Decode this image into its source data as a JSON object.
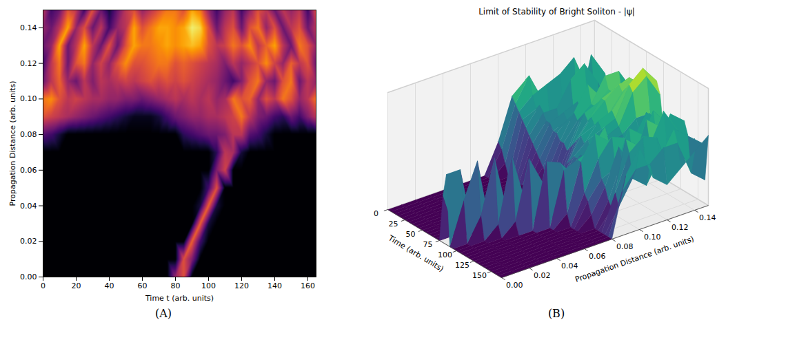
{
  "chart_data": [
    {
      "type": "heatmap",
      "caption": "(A)",
      "x_label": "Time t (arb. units)",
      "y_label": "Propagation Distance (arb. units)",
      "color": "inferno",
      "color_range": [
        0,
        1
      ],
      "xlim": [
        0,
        165
      ],
      "ylim": [
        0,
        0.15
      ],
      "xticks": [
        0,
        20,
        40,
        60,
        80,
        100,
        120,
        140,
        160
      ],
      "yticks": [
        {
          "value": 0,
          "label": "0.00"
        },
        {
          "value": 0.02,
          "label": "0.02"
        },
        {
          "value": 0.04,
          "label": "0.04"
        },
        {
          "value": 0.06,
          "label": "0.06"
        },
        {
          "value": 0.08,
          "label": "0.08"
        },
        {
          "value": 0.1,
          "label": "0.10"
        },
        {
          "value": 0.12,
          "label": "0.12"
        },
        {
          "value": 0.14,
          "label": "0.14"
        }
      ],
      "t": [
        0,
        5,
        10,
        15,
        20,
        25,
        30,
        35,
        40,
        45,
        50,
        55,
        60,
        65,
        70,
        75,
        80,
        85,
        90,
        95,
        100,
        105,
        110,
        115,
        120,
        125,
        130,
        135,
        140,
        145,
        150,
        155,
        160,
        165
      ],
      "z": [
        0,
        0.01,
        0.02,
        0.03,
        0.04,
        0.05,
        0.06,
        0.07,
        0.08,
        0.09,
        0.1,
        0.11,
        0.12,
        0.13,
        0.14,
        0.15
      ],
      "values": [
        [
          0,
          0,
          0,
          0,
          0,
          0,
          0,
          0,
          0,
          0,
          0,
          0,
          0,
          0,
          0,
          0,
          0.4,
          0.6,
          0,
          0,
          0,
          0,
          0,
          0,
          0,
          0,
          0,
          0,
          0,
          0,
          0,
          0,
          0,
          0
        ],
        [
          0,
          0,
          0,
          0,
          0,
          0,
          0,
          0,
          0,
          0,
          0,
          0,
          0,
          0,
          0,
          0,
          0,
          0.6,
          0.35,
          0,
          0,
          0,
          0,
          0,
          0,
          0,
          0,
          0,
          0,
          0,
          0,
          0,
          0,
          0
        ],
        [
          0,
          0,
          0,
          0,
          0,
          0,
          0,
          0,
          0,
          0,
          0,
          0,
          0,
          0,
          0,
          0,
          0,
          0,
          0.65,
          0.2,
          0,
          0,
          0,
          0,
          0,
          0,
          0,
          0,
          0,
          0,
          0,
          0,
          0,
          0
        ],
        [
          0,
          0,
          0,
          0,
          0,
          0,
          0,
          0,
          0,
          0,
          0,
          0,
          0,
          0,
          0,
          0,
          0,
          0,
          0,
          0.65,
          0.1,
          0,
          0,
          0,
          0,
          0,
          0,
          0,
          0,
          0,
          0,
          0,
          0,
          0
        ],
        [
          0,
          0,
          0,
          0,
          0,
          0,
          0,
          0,
          0,
          0,
          0,
          0,
          0,
          0,
          0,
          0,
          0,
          0,
          0,
          0.1,
          0.65,
          0.1,
          0,
          0,
          0,
          0,
          0,
          0,
          0,
          0,
          0,
          0,
          0,
          0
        ],
        [
          0,
          0,
          0,
          0,
          0,
          0,
          0,
          0,
          0,
          0,
          0,
          0,
          0,
          0,
          0,
          0,
          0,
          0,
          0,
          0,
          0.2,
          0.6,
          0,
          0,
          0,
          0,
          0,
          0,
          0,
          0,
          0,
          0,
          0,
          0
        ],
        [
          0,
          0,
          0,
          0,
          0,
          0,
          0,
          0,
          0,
          0,
          0,
          0,
          0,
          0,
          0,
          0,
          0,
          0,
          0,
          0,
          0,
          0.35,
          0.55,
          0,
          0,
          0,
          0,
          0,
          0,
          0,
          0,
          0,
          0,
          0
        ],
        [
          0,
          0,
          0,
          0,
          0,
          0,
          0,
          0,
          0,
          0,
          0,
          0,
          0,
          0,
          0,
          0,
          0,
          0,
          0,
          0,
          0,
          0.15,
          0.5,
          0.45,
          0.1,
          0,
          0,
          0,
          0,
          0,
          0,
          0,
          0,
          0
        ],
        [
          0.25,
          0.2,
          0.1,
          0,
          0,
          0,
          0,
          0,
          0,
          0,
          0,
          0,
          0,
          0,
          0,
          0,
          0,
          0.15,
          0.2,
          0.25,
          0.3,
          0.3,
          0.35,
          0.5,
          0.5,
          0.25,
          0.2,
          0.1,
          0,
          0,
          0,
          0,
          0,
          0
        ],
        [
          0.6,
          0.55,
          0.5,
          0.45,
          0.4,
          0.35,
          0.3,
          0.25,
          0.2,
          0.15,
          0.1,
          0.05,
          0.05,
          0.05,
          0.1,
          0.2,
          0.3,
          0.35,
          0.4,
          0.4,
          0.45,
          0.45,
          0.5,
          0.55,
          0.7,
          0.5,
          0.35,
          0.3,
          0.2,
          0.15,
          0.3,
          0.2,
          0.35,
          0.5
        ],
        [
          0.7,
          0.75,
          0.6,
          0.5,
          0.55,
          0.5,
          0.45,
          0.45,
          0.4,
          0.4,
          0.35,
          0.35,
          0.3,
          0.35,
          0.4,
          0.45,
          0.5,
          0.45,
          0.5,
          0.45,
          0.5,
          0.4,
          0.45,
          0.7,
          0.6,
          0.65,
          0.4,
          0.6,
          0.5,
          0.7,
          0.6,
          0.4,
          0.5,
          0.7
        ],
        [
          0.3,
          0.5,
          0.65,
          0.4,
          0.3,
          0.5,
          0.35,
          0.5,
          0.45,
          0.5,
          0.55,
          0.5,
          0.55,
          0.6,
          0.55,
          0.6,
          0.55,
          0.6,
          0.55,
          0.5,
          0.45,
          0.4,
          0.3,
          0.2,
          0.35,
          0.6,
          0.7,
          0.4,
          0.3,
          0.6,
          0.7,
          0.3,
          0.5,
          0.4
        ],
        [
          0.2,
          0.5,
          0.7,
          0.3,
          0.6,
          0.7,
          0.4,
          0.55,
          0.4,
          0.6,
          0.75,
          0.6,
          0.6,
          0.65,
          0.7,
          0.7,
          0.6,
          0.65,
          0.6,
          0.55,
          0.5,
          0.45,
          0.35,
          0.5,
          0.4,
          0.5,
          0.6,
          0.75,
          0.55,
          0.4,
          0.65,
          0.5,
          0.6,
          0.3
        ],
        [
          0.3,
          0.4,
          0.8,
          0.3,
          0.5,
          0.8,
          0.5,
          0.3,
          0.6,
          0.3,
          0.6,
          0.8,
          0.7,
          0.7,
          0.75,
          0.8,
          0.75,
          0.8,
          0.85,
          0.8,
          0.6,
          0.5,
          0.55,
          0.7,
          0.6,
          0.75,
          0.5,
          0.65,
          0.8,
          0.5,
          0.3,
          0.7,
          0.6,
          0.4
        ],
        [
          0.4,
          0.3,
          0.5,
          0.8,
          0.4,
          0.6,
          0.3,
          0.5,
          0.2,
          0.4,
          0.5,
          0.8,
          0.6,
          0.7,
          0.8,
          0.8,
          0.75,
          0.8,
          0.95,
          0.9,
          0.6,
          0.3,
          0.5,
          0.6,
          0.3,
          0.6,
          0.7,
          0.4,
          0.6,
          0.3,
          0.5,
          0.6,
          0.3,
          0.5
        ],
        [
          0.5,
          0.2,
          0.3,
          0.6,
          0.5,
          0.2,
          0.6,
          0.3,
          0.1,
          0.3,
          0.5,
          0.6,
          0.4,
          0.5,
          0.6,
          0.7,
          0.7,
          0.6,
          0.8,
          0.7,
          0.4,
          0.2,
          0.4,
          0.5,
          0.2,
          0.4,
          0.6,
          0.5,
          0.3,
          0.5,
          0.4,
          0.5,
          0.2,
          0.6
        ]
      ]
    },
    {
      "type": "surface",
      "caption": "(B)",
      "title": "Limit of Stability of Bright Soliton - |ψ|",
      "x_label": "Time (arb. units)",
      "y_label": "Propagation Distance (arb. units)",
      "color": "viridis",
      "tick_labels": "x",
      "xlim": [
        0,
        165
      ],
      "ylim": [
        0,
        0.15
      ],
      "zlim": [
        0,
        1
      ],
      "xticks": [
        0,
        25,
        50,
        75,
        100,
        125,
        150
      ],
      "yticks": [
        {
          "value": 0,
          "label": "0.00"
        },
        {
          "value": 0.02,
          "label": "0.02"
        },
        {
          "value": 0.04,
          "label": "0.04"
        },
        {
          "value": 0.06,
          "label": "0.06"
        },
        {
          "value": 0.08,
          "label": "0.08"
        },
        {
          "value": 0.1,
          "label": "0.10"
        },
        {
          "value": 0.12,
          "label": "0.12"
        },
        {
          "value": 0.14,
          "label": "0.14"
        }
      ],
      "t": [
        0,
        5,
        10,
        15,
        20,
        25,
        30,
        35,
        40,
        45,
        50,
        55,
        60,
        65,
        70,
        75,
        80,
        85,
        90,
        95,
        100,
        105,
        110,
        115,
        120,
        125,
        130,
        135,
        140,
        145,
        150,
        155,
        160,
        165
      ],
      "z": [
        0,
        0.01,
        0.02,
        0.03,
        0.04,
        0.05,
        0.06,
        0.07,
        0.08,
        0.09,
        0.1,
        0.11,
        0.12,
        0.13,
        0.14,
        0.15
      ],
      "values": [
        [
          0,
          0,
          0,
          0,
          0,
          0,
          0,
          0,
          0,
          0,
          0,
          0,
          0,
          0,
          0,
          0,
          0.4,
          0.6,
          0,
          0,
          0,
          0,
          0,
          0,
          0,
          0,
          0,
          0,
          0,
          0,
          0,
          0,
          0,
          0
        ],
        [
          0,
          0,
          0,
          0,
          0,
          0,
          0,
          0,
          0,
          0,
          0,
          0,
          0,
          0,
          0,
          0,
          0,
          0.6,
          0.35,
          0,
          0,
          0,
          0,
          0,
          0,
          0,
          0,
          0,
          0,
          0,
          0,
          0,
          0,
          0
        ],
        [
          0,
          0,
          0,
          0,
          0,
          0,
          0,
          0,
          0,
          0,
          0,
          0,
          0,
          0,
          0,
          0,
          0,
          0,
          0.65,
          0.2,
          0,
          0,
          0,
          0,
          0,
          0,
          0,
          0,
          0,
          0,
          0,
          0,
          0,
          0
        ],
        [
          0,
          0,
          0,
          0,
          0,
          0,
          0,
          0,
          0,
          0,
          0,
          0,
          0,
          0,
          0,
          0,
          0,
          0,
          0,
          0.65,
          0.1,
          0,
          0,
          0,
          0,
          0,
          0,
          0,
          0,
          0,
          0,
          0,
          0,
          0
        ],
        [
          0,
          0,
          0,
          0,
          0,
          0,
          0,
          0,
          0,
          0,
          0,
          0,
          0,
          0,
          0,
          0,
          0,
          0,
          0,
          0.1,
          0.65,
          0.1,
          0,
          0,
          0,
          0,
          0,
          0,
          0,
          0,
          0,
          0,
          0,
          0
        ],
        [
          0,
          0,
          0,
          0,
          0,
          0,
          0,
          0,
          0,
          0,
          0,
          0,
          0,
          0,
          0,
          0,
          0,
          0,
          0,
          0,
          0.2,
          0.6,
          0,
          0,
          0,
          0,
          0,
          0,
          0,
          0,
          0,
          0,
          0,
          0
        ],
        [
          0,
          0,
          0,
          0,
          0,
          0,
          0,
          0,
          0,
          0,
          0,
          0,
          0,
          0,
          0,
          0,
          0,
          0,
          0,
          0,
          0,
          0.35,
          0.55,
          0,
          0,
          0,
          0,
          0,
          0,
          0,
          0,
          0,
          0,
          0
        ],
        [
          0,
          0,
          0,
          0,
          0,
          0,
          0,
          0,
          0,
          0,
          0,
          0,
          0,
          0,
          0,
          0,
          0,
          0,
          0,
          0,
          0,
          0.15,
          0.5,
          0.45,
          0.1,
          0,
          0,
          0,
          0,
          0,
          0,
          0,
          0,
          0
        ],
        [
          0.25,
          0.2,
          0.1,
          0,
          0,
          0,
          0,
          0,
          0,
          0,
          0,
          0,
          0,
          0,
          0,
          0,
          0,
          0.15,
          0.2,
          0.25,
          0.3,
          0.3,
          0.35,
          0.5,
          0.5,
          0.25,
          0.2,
          0.1,
          0,
          0,
          0,
          0,
          0,
          0
        ],
        [
          0.6,
          0.55,
          0.5,
          0.45,
          0.4,
          0.35,
          0.3,
          0.25,
          0.2,
          0.15,
          0.1,
          0.05,
          0.05,
          0.05,
          0.1,
          0.2,
          0.3,
          0.35,
          0.4,
          0.4,
          0.45,
          0.45,
          0.5,
          0.55,
          0.7,
          0.5,
          0.35,
          0.3,
          0.2,
          0.15,
          0.3,
          0.2,
          0.35,
          0.5
        ],
        [
          0.7,
          0.75,
          0.6,
          0.5,
          0.55,
          0.5,
          0.45,
          0.45,
          0.4,
          0.4,
          0.35,
          0.35,
          0.3,
          0.35,
          0.4,
          0.45,
          0.5,
          0.45,
          0.5,
          0.45,
          0.5,
          0.4,
          0.45,
          0.7,
          0.6,
          0.65,
          0.4,
          0.6,
          0.5,
          0.7,
          0.6,
          0.4,
          0.5,
          0.7
        ],
        [
          0.3,
          0.5,
          0.65,
          0.4,
          0.3,
          0.5,
          0.35,
          0.5,
          0.45,
          0.5,
          0.55,
          0.5,
          0.55,
          0.6,
          0.55,
          0.6,
          0.55,
          0.6,
          0.55,
          0.5,
          0.45,
          0.4,
          0.3,
          0.2,
          0.35,
          0.6,
          0.7,
          0.4,
          0.3,
          0.6,
          0.7,
          0.3,
          0.5,
          0.4
        ],
        [
          0.2,
          0.5,
          0.7,
          0.3,
          0.6,
          0.7,
          0.4,
          0.55,
          0.4,
          0.6,
          0.75,
          0.6,
          0.6,
          0.65,
          0.7,
          0.7,
          0.6,
          0.65,
          0.6,
          0.55,
          0.5,
          0.45,
          0.35,
          0.5,
          0.4,
          0.5,
          0.6,
          0.75,
          0.55,
          0.4,
          0.65,
          0.5,
          0.6,
          0.3
        ],
        [
          0.3,
          0.4,
          0.8,
          0.3,
          0.5,
          0.8,
          0.5,
          0.3,
          0.6,
          0.3,
          0.6,
          0.8,
          0.7,
          0.7,
          0.75,
          0.8,
          0.75,
          0.8,
          0.85,
          0.8,
          0.6,
          0.5,
          0.55,
          0.7,
          0.6,
          0.75,
          0.5,
          0.65,
          0.8,
          0.5,
          0.3,
          0.7,
          0.6,
          0.4
        ],
        [
          0.4,
          0.3,
          0.5,
          0.8,
          0.4,
          0.6,
          0.3,
          0.5,
          0.2,
          0.4,
          0.5,
          0.8,
          0.6,
          0.7,
          0.8,
          0.8,
          0.75,
          0.8,
          0.95,
          0.9,
          0.6,
          0.3,
          0.5,
          0.6,
          0.3,
          0.6,
          0.7,
          0.4,
          0.6,
          0.3,
          0.5,
          0.6,
          0.3,
          0.5
        ],
        [
          0.5,
          0.2,
          0.3,
          0.6,
          0.5,
          0.2,
          0.6,
          0.3,
          0.1,
          0.3,
          0.5,
          0.6,
          0.4,
          0.5,
          0.6,
          0.7,
          0.7,
          0.6,
          0.8,
          0.7,
          0.4,
          0.2,
          0.4,
          0.5,
          0.2,
          0.4,
          0.6,
          0.5,
          0.3,
          0.5,
          0.4,
          0.5,
          0.2,
          0.6
        ]
      ]
    }
  ]
}
